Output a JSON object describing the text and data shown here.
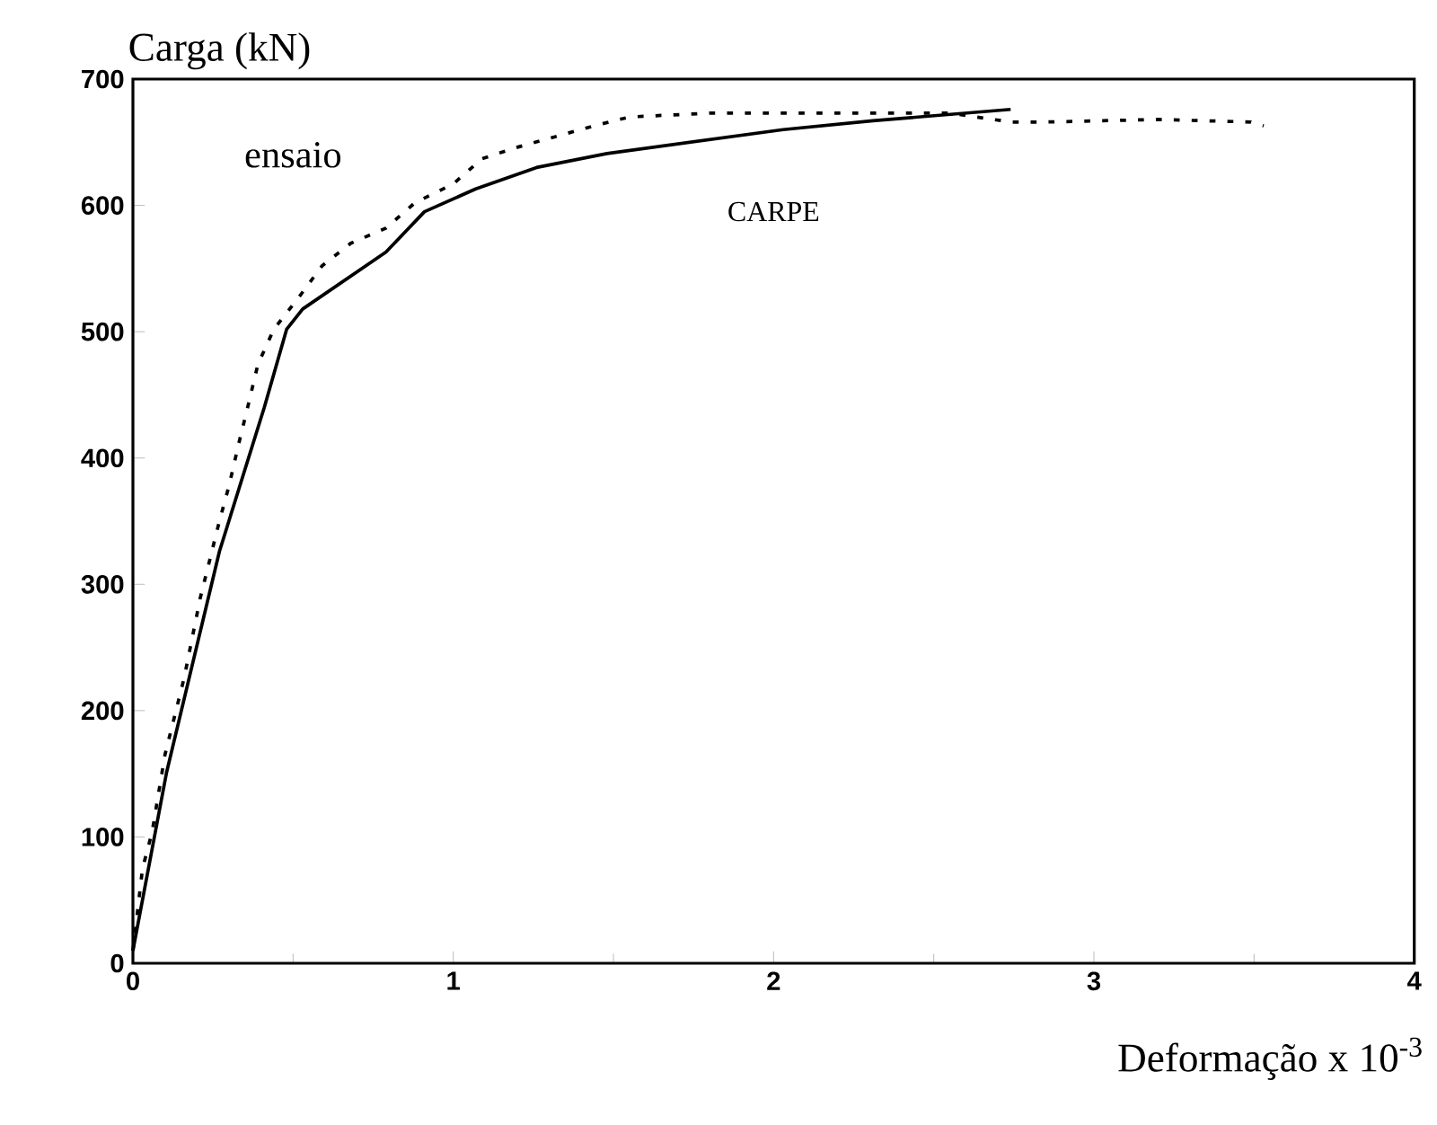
{
  "chart_data": {
    "type": "line",
    "title": "Carga (kN)",
    "xlabel": "Deformação x 10$^{-3}$",
    "xlim": [
      0,
      4
    ],
    "ylim": [
      0,
      700
    ],
    "xticks": [
      0,
      1,
      2,
      3,
      4
    ],
    "yticks": [
      0,
      100,
      200,
      300,
      400,
      500,
      600,
      700
    ],
    "series": [
      {
        "name": "ensaio",
        "color": "#000000",
        "line_style": "dashed",
        "x": [
          0,
          0.03,
          0.06,
          0.1,
          0.16,
          0.21,
          0.27,
          0.3,
          0.33,
          0.36,
          0.39,
          0.44,
          0.52,
          0.59,
          0.68,
          0.79,
          0.88,
          1.0,
          1.09,
          1.2,
          1.44,
          1.55,
          1.8,
          2.2,
          2.55,
          2.74,
          2.85,
          3.2,
          3.49,
          3.53
        ],
        "values": [
          10,
          75,
          104,
          165,
          226,
          289,
          350,
          378,
          411,
          442,
          474,
          502,
          528,
          552,
          570,
          582,
          602,
          617,
          637,
          646,
          663,
          670,
          673,
          673,
          673,
          666,
          666,
          668,
          666,
          663
        ]
      },
      {
        "name": "CARPE",
        "color": "#000000",
        "line_style": "solid",
        "x": [
          0,
          0.105,
          0.27,
          0.41,
          0.48,
          0.53,
          0.79,
          0.91,
          1.07,
          1.26,
          1.48,
          2.03,
          2.31,
          2.74
        ],
        "values": [
          10,
          151,
          326,
          440,
          502,
          518,
          563,
          595,
          613,
          630,
          641,
          660,
          667,
          676
        ]
      }
    ]
  }
}
